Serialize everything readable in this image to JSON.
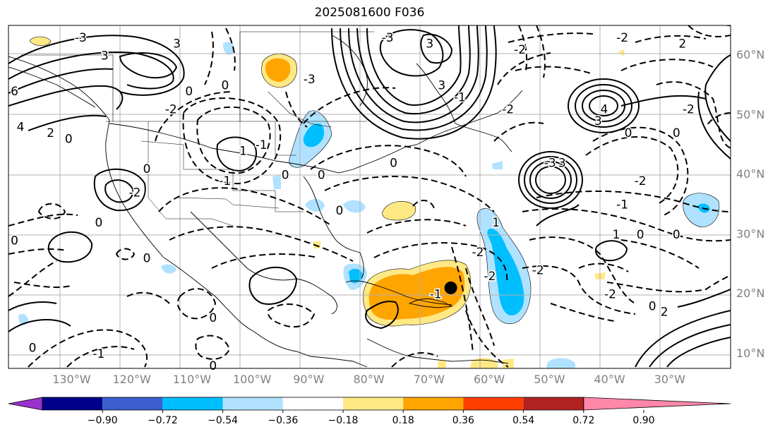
{
  "title": "2025081600 F036",
  "axes": {
    "lon_labels": [
      "130°W",
      "120°W",
      "110°W",
      "100°W",
      "90°W",
      "80°W",
      "70°W",
      "60°W",
      "50°W",
      "40°W",
      "30°W"
    ],
    "lat_labels": [
      "60°N",
      "50°N",
      "40°N",
      "30°N",
      "20°N",
      "10°N"
    ]
  },
  "contour_labels": [
    {
      "text": "-3",
      "lon": -128,
      "lat": 63
    },
    {
      "text": "3",
      "lon": -124,
      "lat": 60
    },
    {
      "text": "3",
      "lon": -112,
      "lat": 62
    },
    {
      "text": "6",
      "lon": -139,
      "lat": 54
    },
    {
      "text": "4",
      "lon": -138,
      "lat": 48
    },
    {
      "text": "2",
      "lon": -133,
      "lat": 47
    },
    {
      "text": "0",
      "lon": -130,
      "lat": 46
    },
    {
      "text": "0",
      "lon": -110,
      "lat": 54
    },
    {
      "text": "-2",
      "lon": -113,
      "lat": 51
    },
    {
      "text": "1",
      "lon": -101,
      "lat": 44
    },
    {
      "text": "-1",
      "lon": -98,
      "lat": 45
    },
    {
      "text": "0",
      "lon": -94,
      "lat": 40
    },
    {
      "text": "-1",
      "lon": -104,
      "lat": 39
    },
    {
      "text": "-2",
      "lon": -119,
      "lat": 37
    },
    {
      "text": "0",
      "lon": -117,
      "lat": 41
    },
    {
      "text": "0",
      "lon": -125,
      "lat": 32
    },
    {
      "text": "0",
      "lon": -139,
      "lat": 29
    },
    {
      "text": "0",
      "lon": -117,
      "lat": 26
    },
    {
      "text": "0",
      "lon": -106,
      "lat": 16
    },
    {
      "text": "0",
      "lon": -136,
      "lat": 11
    },
    {
      "text": "-1",
      "lon": -125,
      "lat": 10
    },
    {
      "text": "0",
      "lon": -106,
      "lat": 8
    },
    {
      "text": "0",
      "lon": -85,
      "lat": 34
    },
    {
      "text": "0",
      "lon": -88,
      "lat": 40
    },
    {
      "text": "-3",
      "lon": -90,
      "lat": 56
    },
    {
      "text": "-3",
      "lon": -77,
      "lat": 63
    },
    {
      "text": "3",
      "lon": -70,
      "lat": 62
    },
    {
      "text": "3",
      "lon": -68,
      "lat": 55
    },
    {
      "text": "0",
      "lon": -76,
      "lat": 42
    },
    {
      "text": "-1",
      "lon": -65,
      "lat": 53
    },
    {
      "text": "4",
      "lon": -41,
      "lat": 51
    },
    {
      "text": "3",
      "lon": -42,
      "lat": 49
    },
    {
      "text": "0",
      "lon": -37,
      "lat": 47
    },
    {
      "text": "-3",
      "lon": -50,
      "lat": 42
    },
    {
      "text": "3",
      "lon": -48,
      "lat": 42
    },
    {
      "text": "-1",
      "lon": -38,
      "lat": 35
    },
    {
      "text": "-2",
      "lon": -35,
      "lat": 39
    },
    {
      "text": "-2",
      "lon": -27,
      "lat": 51
    },
    {
      "text": "0",
      "lon": -29,
      "lat": 47
    },
    {
      "text": "1",
      "lon": -39,
      "lat": 30
    },
    {
      "text": "0",
      "lon": -35,
      "lat": 30
    },
    {
      "text": "-2",
      "lon": -60,
      "lat": 23
    },
    {
      "text": "-2",
      "lon": -62,
      "lat": 27
    },
    {
      "text": "-2",
      "lon": -52,
      "lat": 24
    },
    {
      "text": "-2",
      "lon": -40,
      "lat": 20
    },
    {
      "text": "0",
      "lon": -33,
      "lat": 18
    },
    {
      "text": "2",
      "lon": -31,
      "lat": 17
    },
    {
      "text": "0",
      "lon": -29,
      "lat": 30
    },
    {
      "text": "-1",
      "lon": -69,
      "lat": 20
    },
    {
      "text": "1",
      "lon": -59,
      "lat": 32
    },
    {
      "text": "-2",
      "lon": -38,
      "lat": 63
    },
    {
      "text": "2",
      "lon": -28,
      "lat": 62
    },
    {
      "text": "-2",
      "lon": -55,
      "lat": 61
    },
    {
      "text": "-2",
      "lon": -57,
      "lat": 51
    },
    {
      "text": "0",
      "lon": -104,
      "lat": 55
    }
  ],
  "storm_center": {
    "lon": -66.5,
    "lat": 21
  },
  "colorbar": {
    "ticks": [
      "−0.90",
      "−0.72",
      "−0.54",
      "−0.36",
      "−0.18",
      "0.18",
      "0.36",
      "0.54",
      "0.72",
      "0.90"
    ],
    "colors": [
      "#9932cc",
      "#00008b",
      "#3a5fcd",
      "#00bfff",
      "#b0e2ff",
      "#ffffff",
      "#ffe985",
      "#ffa500",
      "#ff3f00",
      "#b22222",
      "#ff88aa"
    ]
  },
  "shading": {
    "positive_light": "#ffe985",
    "positive_mid": "#ffa500",
    "negative_light": "#b0e2ff",
    "negative_mid": "#00bfff"
  }
}
